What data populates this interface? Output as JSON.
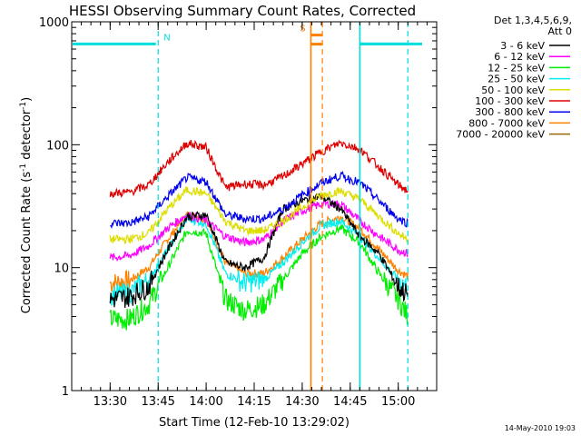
{
  "chart_data": {
    "type": "line",
    "title": "HESSI Observing Summary Count Rates, Corrected",
    "xlabel": "Start Time (12-Feb-10 13:29:02)",
    "ylabel_main": "Corrected Count Rate (s",
    "ylabel_sup1": "-1",
    "ylabel_mid": " detector",
    "ylabel_sup2": "-1",
    "ylabel_end": ")",
    "yscale": "log",
    "ylim": [
      1,
      1000
    ],
    "xlim_minutes": [
      13.3,
      15.2
    ],
    "x_tick_labels": [
      "13:30",
      "13:45",
      "14:00",
      "14:15",
      "14:30",
      "14:45",
      "15:00"
    ],
    "x_tick_minutes": [
      13.5,
      13.75,
      14.0,
      14.25,
      14.5,
      14.75,
      15.0
    ],
    "y_tick_labels": [
      "1",
      "10",
      "100",
      "1000"
    ],
    "y_tick_values": [
      1,
      10,
      100,
      1000
    ],
    "legend_header_1": "Det 1,3,4,5,6,9,",
    "legend_header_2": "Att 0",
    "legend_placement": "right",
    "series": [
      {
        "name": "3 - 6 keV",
        "color": "#000000",
        "x": [
          13.5,
          13.6,
          13.7,
          13.8,
          13.9,
          14.0,
          14.1,
          14.2,
          14.3,
          14.4,
          14.5,
          14.6,
          14.7,
          14.8,
          14.9,
          15.0,
          15.05
        ],
        "y": [
          5.5,
          5.8,
          7,
          14,
          26,
          27,
          11,
          10,
          12,
          30,
          35,
          38,
          30,
          18,
          13,
          7,
          6
        ]
      },
      {
        "name": "6 - 12 keV",
        "color": "#ff00ff",
        "x": [
          13.5,
          13.6,
          13.7,
          13.8,
          13.9,
          14.0,
          14.1,
          14.2,
          14.3,
          14.4,
          14.5,
          14.6,
          14.7,
          14.8,
          14.9,
          15.0,
          15.05
        ],
        "y": [
          12,
          12.5,
          15,
          21,
          27,
          24,
          18,
          16,
          17,
          24,
          29,
          33,
          33,
          24,
          18,
          14,
          13
        ]
      },
      {
        "name": "12 - 25 keV",
        "color": "#00ee00",
        "x": [
          13.5,
          13.6,
          13.7,
          13.8,
          13.9,
          14.0,
          14.1,
          14.2,
          14.3,
          14.4,
          14.5,
          14.6,
          14.7,
          14.8,
          14.9,
          15.0,
          15.05
        ],
        "y": [
          3.8,
          3.8,
          5,
          10,
          20,
          19,
          5.5,
          4.5,
          5,
          8,
          13,
          18,
          21,
          16,
          9,
          5.5,
          4
        ]
      },
      {
        "name": "25 - 50 keV",
        "color": "#00eeee",
        "x": [
          13.5,
          13.6,
          13.7,
          13.8,
          13.9,
          14.0,
          14.1,
          14.2,
          14.3,
          14.4,
          14.5,
          14.6,
          14.7,
          14.8,
          14.9,
          15.0,
          15.05
        ],
        "y": [
          6,
          6.2,
          8,
          14,
          25,
          23,
          9,
          7.5,
          8,
          11,
          16,
          22,
          24,
          18,
          12,
          8,
          7
        ]
      },
      {
        "name": "50 - 100 keV",
        "color": "#dddd00",
        "x": [
          13.5,
          13.6,
          13.7,
          13.8,
          13.9,
          14.0,
          14.1,
          14.2,
          14.3,
          14.4,
          14.5,
          14.6,
          14.7,
          14.8,
          14.9,
          15.0,
          15.05
        ],
        "y": [
          17,
          17,
          19,
          30,
          43,
          40,
          24,
          20,
          20,
          24,
          31,
          39,
          42,
          36,
          26,
          19,
          17
        ]
      },
      {
        "name": "100 - 300 keV",
        "color": "#dd0000",
        "x": [
          13.5,
          13.6,
          13.7,
          13.8,
          13.9,
          14.0,
          14.1,
          14.2,
          14.3,
          14.4,
          14.5,
          14.6,
          14.7,
          14.8,
          14.9,
          15.0,
          15.05
        ],
        "y": [
          40,
          41,
          47,
          72,
          103,
          95,
          45,
          48,
          47,
          55,
          70,
          88,
          104,
          92,
          66,
          47,
          42
        ]
      },
      {
        "name": "300 - 800 keV",
        "color": "#0000ee",
        "x": [
          13.5,
          13.6,
          13.7,
          13.8,
          13.9,
          14.0,
          14.1,
          14.2,
          14.3,
          14.4,
          14.5,
          14.6,
          14.7,
          14.8,
          14.9,
          15.0,
          15.05
        ],
        "y": [
          23,
          23,
          26,
          38,
          54,
          50,
          27,
          25,
          25,
          30,
          39,
          49,
          56,
          49,
          35,
          25,
          23
        ]
      },
      {
        "name": "800 - 7000 keV",
        "color": "#ff8000",
        "x": [
          13.5,
          13.6,
          13.7,
          13.8,
          13.9,
          14.0,
          14.1,
          14.2,
          14.3,
          14.4,
          14.5,
          14.6,
          14.7,
          14.8,
          14.9,
          15.0,
          15.05
        ],
        "y": [
          7.5,
          7.8,
          10,
          17,
          27,
          25,
          11,
          9,
          9,
          12,
          17,
          23,
          26,
          21,
          14,
          9.5,
          8.5
        ]
      },
      {
        "name": "7000 - 20000 keV",
        "color": "#996600",
        "x": [],
        "y": []
      }
    ],
    "annotations": [
      {
        "label": "N",
        "color": "#00dddd",
        "x_start": 13.5,
        "x_end": 13.75,
        "style": "dashed-right",
        "bar_level": 660
      },
      {
        "label": "S",
        "color": "#ff8000",
        "x_start": 14.545,
        "x_end": 14.605,
        "style": "solid-left-dashed-right",
        "bar_level": 780
      },
      {
        "label": "",
        "color": "#00dddd",
        "x_start": 14.8,
        "x_end": 15.05,
        "style": "solid-left-dashed-right",
        "bar_level": 660
      }
    ]
  },
  "footer_timestamp": "14-May-2010 19:03"
}
